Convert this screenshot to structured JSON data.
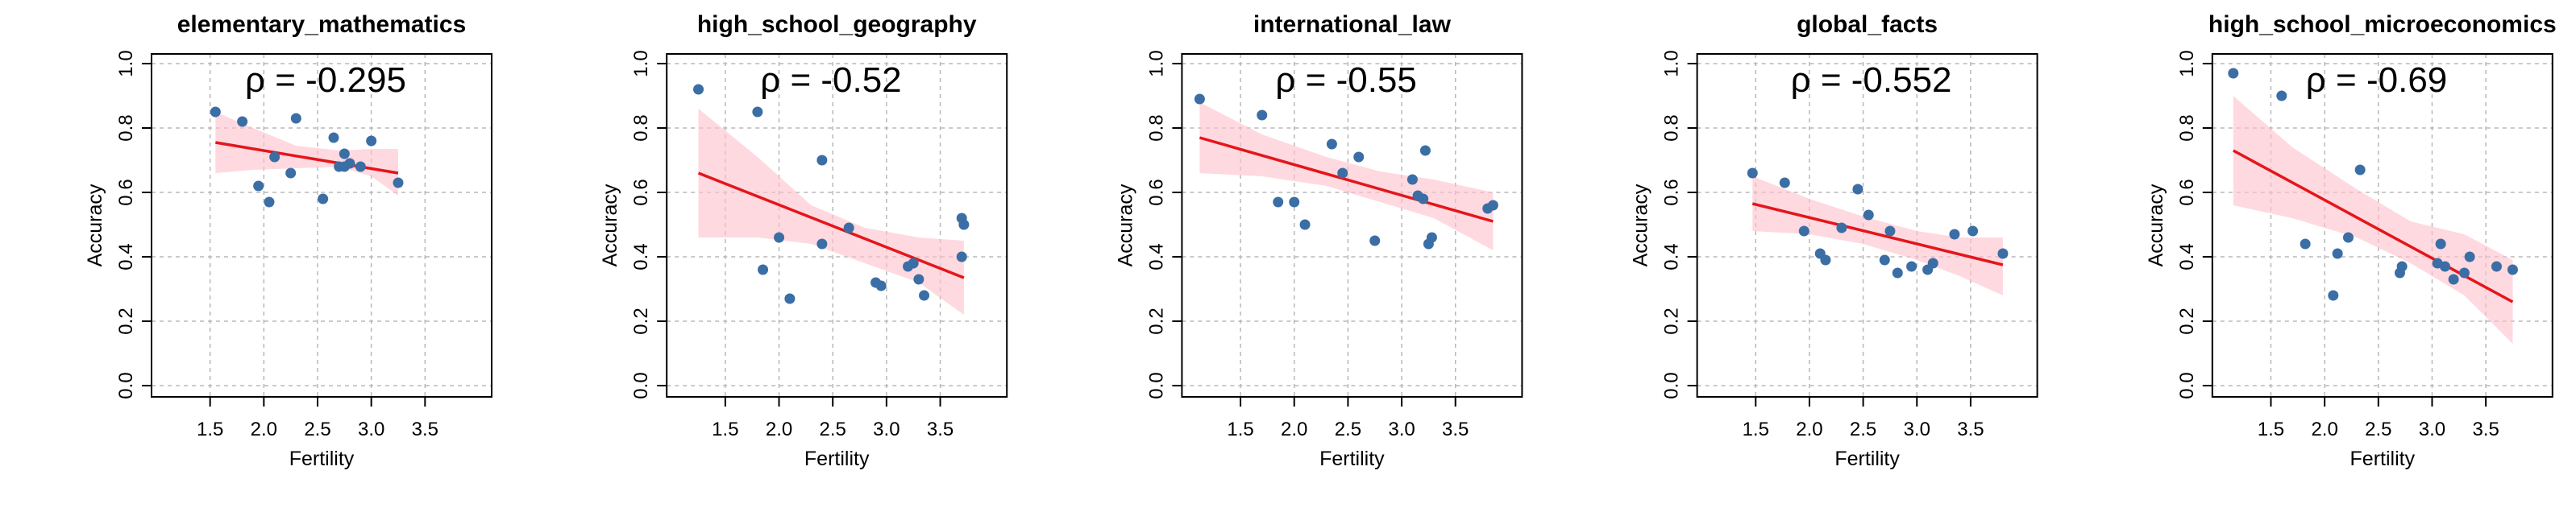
{
  "chart_data": [
    {
      "type": "scatter",
      "title": "elementary_mathematics",
      "xlabel": "Fertility",
      "ylabel": "Accuracy",
      "annotation": "ρ = -0.295",
      "xlim": [
        1.0,
        4.0
      ],
      "ylim": [
        0.0,
        1.0
      ],
      "xticks": [
        "1.5",
        "2.0",
        "2.5",
        "3.0",
        "3.5"
      ],
      "yticks": [
        "0.0",
        "0.2",
        "0.4",
        "0.6",
        "0.8",
        "1.0"
      ],
      "grid": true,
      "points": [
        [
          1.55,
          0.85
        ],
        [
          1.8,
          0.82
        ],
        [
          1.95,
          0.62
        ],
        [
          2.05,
          0.57
        ],
        [
          2.1,
          0.71
        ],
        [
          2.25,
          0.66
        ],
        [
          2.3,
          0.83
        ],
        [
          2.55,
          0.58
        ],
        [
          2.65,
          0.77
        ],
        [
          2.7,
          0.68
        ],
        [
          2.75,
          0.72
        ],
        [
          2.75,
          0.68
        ],
        [
          2.8,
          0.69
        ],
        [
          2.9,
          0.68
        ],
        [
          3.0,
          0.76
        ],
        [
          3.25,
          0.63
        ]
      ],
      "fit": {
        "x": [
          1.55,
          3.25
        ],
        "y": [
          0.755,
          0.66
        ]
      },
      "ci_band": {
        "x": [
          1.55,
          1.9,
          2.3,
          2.7,
          3.0,
          3.25
        ],
        "lower": [
          0.66,
          0.67,
          0.675,
          0.68,
          0.65,
          0.59
        ],
        "upper": [
          0.85,
          0.8,
          0.745,
          0.73,
          0.735,
          0.735
        ]
      }
    },
    {
      "type": "scatter",
      "title": "high_school_geography",
      "xlabel": "Fertility",
      "ylabel": "Accuracy",
      "annotation": "ρ = -0.52",
      "xlim": [
        1.0,
        4.0
      ],
      "ylim": [
        0.0,
        1.0
      ],
      "xticks": [
        "1.5",
        "2.0",
        "2.5",
        "3.0",
        "3.5"
      ],
      "yticks": [
        "0.0",
        "0.2",
        "0.4",
        "0.6",
        "0.8",
        "1.0"
      ],
      "grid": true,
      "points": [
        [
          1.25,
          0.92
        ],
        [
          1.8,
          0.85
        ],
        [
          1.85,
          0.36
        ],
        [
          2.0,
          0.46
        ],
        [
          2.1,
          0.27
        ],
        [
          2.4,
          0.7
        ],
        [
          2.4,
          0.44
        ],
        [
          2.65,
          0.49
        ],
        [
          2.9,
          0.32
        ],
        [
          2.95,
          0.31
        ],
        [
          3.2,
          0.37
        ],
        [
          3.25,
          0.38
        ],
        [
          3.3,
          0.33
        ],
        [
          3.35,
          0.28
        ],
        [
          3.7,
          0.52
        ],
        [
          3.7,
          0.4
        ],
        [
          3.72,
          0.5
        ]
      ],
      "fit": {
        "x": [
          1.25,
          3.72
        ],
        "y": [
          0.66,
          0.335
        ]
      },
      "ci_band": {
        "x": [
          1.25,
          1.8,
          2.3,
          2.8,
          3.3,
          3.72
        ],
        "lower": [
          0.46,
          0.46,
          0.44,
          0.38,
          0.32,
          0.22
        ],
        "upper": [
          0.86,
          0.71,
          0.56,
          0.49,
          0.46,
          0.45
        ]
      }
    },
    {
      "type": "scatter",
      "title": "international_law",
      "xlabel": "Fertility",
      "ylabel": "Accuracy",
      "annotation": "ρ = -0.55",
      "xlim": [
        1.0,
        4.0
      ],
      "ylim": [
        0.0,
        1.0
      ],
      "xticks": [
        "1.5",
        "2.0",
        "2.5",
        "3.0",
        "3.5"
      ],
      "yticks": [
        "0.0",
        "0.2",
        "0.4",
        "0.6",
        "0.8",
        "1.0"
      ],
      "grid": true,
      "points": [
        [
          1.12,
          0.89
        ],
        [
          1.7,
          0.84
        ],
        [
          1.85,
          0.57
        ],
        [
          2.0,
          0.57
        ],
        [
          2.1,
          0.5
        ],
        [
          2.35,
          0.75
        ],
        [
          2.45,
          0.66
        ],
        [
          2.6,
          0.71
        ],
        [
          2.75,
          0.45
        ],
        [
          3.1,
          0.64
        ],
        [
          3.15,
          0.59
        ],
        [
          3.2,
          0.58
        ],
        [
          3.22,
          0.73
        ],
        [
          3.25,
          0.44
        ],
        [
          3.28,
          0.46
        ],
        [
          3.8,
          0.55
        ],
        [
          3.85,
          0.56
        ]
      ],
      "fit": {
        "x": [
          1.12,
          3.85
        ],
        "y": [
          0.77,
          0.51
        ]
      },
      "ci_band": {
        "x": [
          1.12,
          1.7,
          2.3,
          2.8,
          3.3,
          3.85
        ],
        "lower": [
          0.66,
          0.65,
          0.62,
          0.57,
          0.52,
          0.42
        ],
        "upper": [
          0.88,
          0.78,
          0.71,
          0.665,
          0.64,
          0.6
        ]
      }
    },
    {
      "type": "scatter",
      "title": "global_facts",
      "xlabel": "Fertility",
      "ylabel": "Accuracy",
      "annotation": "ρ = -0.552",
      "xlim": [
        1.0,
        4.0
      ],
      "ylim": [
        0.0,
        1.0
      ],
      "xticks": [
        "1.5",
        "2.0",
        "2.5",
        "3.0",
        "3.5"
      ],
      "yticks": [
        "0.0",
        "0.2",
        "0.4",
        "0.6",
        "0.8",
        "1.0"
      ],
      "grid": true,
      "points": [
        [
          1.47,
          0.66
        ],
        [
          1.77,
          0.63
        ],
        [
          1.95,
          0.48
        ],
        [
          2.1,
          0.41
        ],
        [
          2.15,
          0.39
        ],
        [
          2.3,
          0.49
        ],
        [
          2.45,
          0.61
        ],
        [
          2.55,
          0.53
        ],
        [
          2.7,
          0.39
        ],
        [
          2.75,
          0.48
        ],
        [
          2.82,
          0.35
        ],
        [
          2.95,
          0.37
        ],
        [
          3.1,
          0.36
        ],
        [
          3.15,
          0.38
        ],
        [
          3.35,
          0.47
        ],
        [
          3.52,
          0.48
        ],
        [
          3.8,
          0.41
        ]
      ],
      "fit": {
        "x": [
          1.47,
          3.8
        ],
        "y": [
          0.565,
          0.375
        ]
      },
      "ci_band": {
        "x": [
          1.47,
          2.0,
          2.5,
          3.0,
          3.4,
          3.8
        ],
        "lower": [
          0.48,
          0.47,
          0.44,
          0.39,
          0.34,
          0.28
        ],
        "upper": [
          0.65,
          0.58,
          0.525,
          0.48,
          0.46,
          0.46
        ]
      }
    },
    {
      "type": "scatter",
      "title": "high_school_microeconomics",
      "xlabel": "Fertility",
      "ylabel": "Accuracy",
      "annotation": "ρ = -0.69",
      "xlim": [
        1.0,
        4.0
      ],
      "ylim": [
        0.0,
        1.0
      ],
      "xticks": [
        "1.5",
        "2.0",
        "2.5",
        "3.0",
        "3.5"
      ],
      "yticks": [
        "0.0",
        "0.2",
        "0.4",
        "0.6",
        "0.8",
        "1.0"
      ],
      "grid": true,
      "points": [
        [
          1.15,
          0.97
        ],
        [
          1.6,
          0.9
        ],
        [
          1.82,
          0.44
        ],
        [
          2.08,
          0.28
        ],
        [
          2.12,
          0.41
        ],
        [
          2.22,
          0.46
        ],
        [
          2.33,
          0.67
        ],
        [
          2.7,
          0.35
        ],
        [
          2.72,
          0.37
        ],
        [
          3.05,
          0.38
        ],
        [
          3.08,
          0.44
        ],
        [
          3.12,
          0.37
        ],
        [
          3.2,
          0.33
        ],
        [
          3.3,
          0.35
        ],
        [
          3.35,
          0.4
        ],
        [
          3.6,
          0.37
        ],
        [
          3.75,
          0.36
        ]
      ],
      "fit": {
        "x": [
          1.15,
          3.75
        ],
        "y": [
          0.73,
          0.26
        ]
      },
      "ci_band": {
        "x": [
          1.15,
          1.7,
          2.3,
          2.8,
          3.3,
          3.75
        ],
        "lower": [
          0.56,
          0.52,
          0.46,
          0.38,
          0.28,
          0.13
        ],
        "upper": [
          0.9,
          0.74,
          0.61,
          0.51,
          0.47,
          0.39
        ]
      }
    }
  ],
  "colors": {
    "points": "#3a6ea5",
    "fit_line": "#e4161b",
    "ci_band": "#ffc0cb",
    "grid": "#b8b8b8",
    "axis": "#000000"
  }
}
